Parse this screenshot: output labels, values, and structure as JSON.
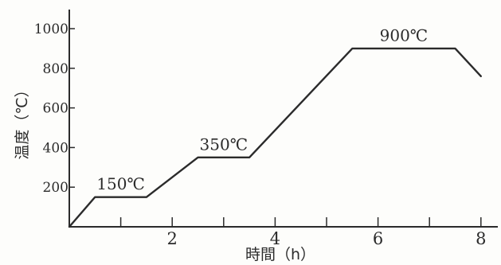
{
  "chart_data": {
    "type": "line",
    "xlabel": "時間（h）",
    "ylabel": "温度（℃）",
    "xlim": [
      0,
      8.3
    ],
    "ylim": [
      0,
      1100
    ],
    "x_ticks": [
      1,
      2,
      3,
      4,
      5,
      6,
      7,
      8
    ],
    "x_tick_labels": [
      "",
      "2",
      "",
      "4",
      "",
      "6",
      "",
      "8"
    ],
    "y_ticks": [
      200,
      400,
      600,
      800,
      1000
    ],
    "y_tick_labels": [
      "200",
      "400",
      "600",
      "800",
      "1000"
    ],
    "grid": false,
    "series": [
      {
        "x": [
          0,
          0.5,
          1.5,
          2.5,
          3.5,
          5.5,
          7.5,
          8
        ],
        "values": [
          0,
          150,
          150,
          350,
          350,
          900,
          900,
          760
        ]
      }
    ],
    "annotations": [
      {
        "text": "150℃",
        "x": 1.0,
        "y": 200
      },
      {
        "text": "350℃",
        "x": 3.0,
        "y": 400
      },
      {
        "text": "900℃",
        "x": 6.5,
        "y": 950
      }
    ]
  },
  "colors": {
    "line": "#2b2b2b",
    "axis": "#2b2b2b",
    "background": "#fdfdfb"
  }
}
